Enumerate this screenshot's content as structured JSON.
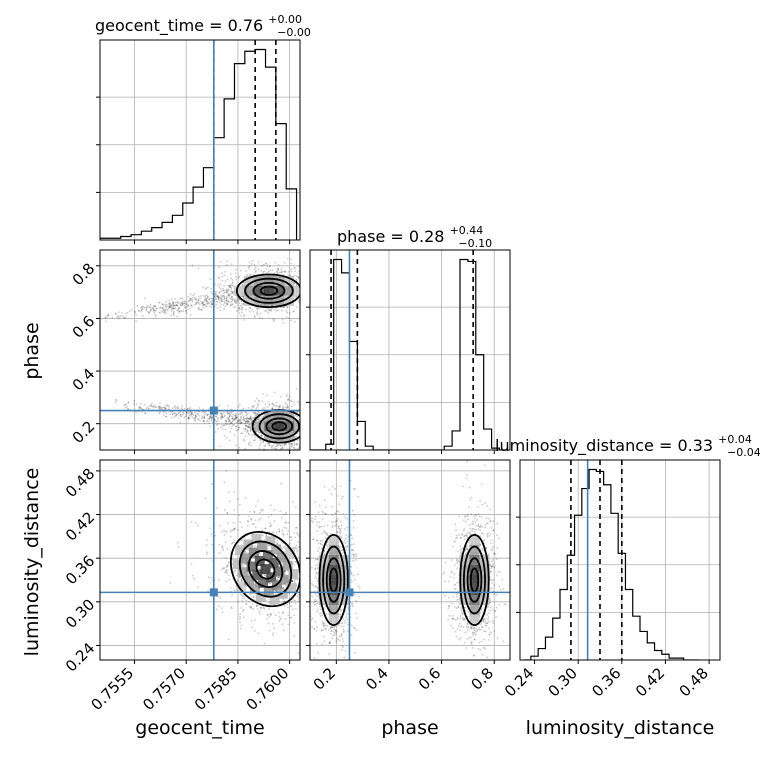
{
  "chart_data": {
    "type": "corner",
    "parameters": [
      "geocent_time",
      "phase",
      "luminosity_distance"
    ],
    "truths": {
      "geocent_time": 0.7578,
      "phase": 0.25,
      "luminosity_distance": 0.313
    },
    "titles": [
      {
        "param": "geocent_time",
        "text": "geocent_time = 0.76",
        "sup": "+0.00",
        "sub": "−0.00"
      },
      {
        "param": "phase",
        "text": "phase = 0.28",
        "sup": "+0.44",
        "sub": "−0.10"
      },
      {
        "param": "luminosity_distance",
        "text": "luminosity_distance = 0.33",
        "sup": "+0.04",
        "sub": "−0.04"
      }
    ],
    "axes": {
      "geocent_time": {
        "label": "geocent_time",
        "range": [
          0.7545,
          0.7603
        ],
        "ticks": [
          0.7555,
          0.757,
          0.7585,
          0.76
        ],
        "tick_labels": [
          "0.7555",
          "0.7570",
          "0.7585",
          "0.7600"
        ]
      },
      "phase": {
        "label": "phase",
        "range": [
          0.1,
          0.86
        ],
        "ticks": [
          0.2,
          0.4,
          0.6,
          0.8
        ],
        "tick_labels": [
          "0.2",
          "0.4",
          "0.6",
          "0.8"
        ]
      },
      "luminosity_distance": {
        "label": "luminosity_distance",
        "range": [
          0.22,
          0.495
        ],
        "ticks": [
          0.24,
          0.3,
          0.36,
          0.42,
          0.48
        ],
        "tick_labels": [
          "0.24",
          "0.30",
          "0.36",
          "0.42",
          "0.48"
        ]
      }
    },
    "histograms": {
      "geocent_time": {
        "bins": [
          0.7545,
          0.7548,
          0.7551,
          0.7554,
          0.7557,
          0.756,
          0.7563,
          0.7566,
          0.7569,
          0.7572,
          0.7575,
          0.7578,
          0.7581,
          0.7584,
          0.7587,
          0.759,
          0.7593,
          0.7596,
          0.7599,
          0.7602
        ],
        "counts": [
          1,
          1,
          2,
          3,
          5,
          7,
          10,
          14,
          21,
          30,
          41,
          58,
          80,
          100,
          107,
          108,
          98,
          66,
          29
        ],
        "quantiles": [
          0.7578,
          0.759,
          0.7596
        ]
      },
      "phase": {
        "bins": [
          0.1,
          0.13,
          0.16,
          0.19,
          0.22,
          0.25,
          0.28,
          0.31,
          0.34,
          0.37,
          0.4,
          0.43,
          0.46,
          0.49,
          0.52,
          0.55,
          0.58,
          0.61,
          0.64,
          0.67,
          0.7,
          0.73,
          0.76,
          0.79,
          0.82,
          0.85
        ],
        "counts": [
          0,
          0,
          3,
          100,
          93,
          57,
          15,
          2,
          0,
          0,
          0,
          0,
          0,
          0,
          0,
          0,
          0,
          2,
          10,
          100,
          99,
          50,
          11,
          1,
          0
        ],
        "quantiles": [
          0.18,
          0.28,
          0.72
        ]
      },
      "luminosity_distance": {
        "bins": [
          0.225,
          0.235,
          0.245,
          0.255,
          0.265,
          0.275,
          0.285,
          0.295,
          0.305,
          0.315,
          0.325,
          0.335,
          0.345,
          0.355,
          0.365,
          0.375,
          0.385,
          0.395,
          0.405,
          0.415,
          0.425,
          0.435,
          0.445,
          0.455,
          0.465
        ],
        "counts": [
          0,
          2,
          6,
          12,
          22,
          37,
          55,
          76,
          90,
          100,
          99,
          92,
          77,
          56,
          37,
          23,
          15,
          9,
          5,
          3,
          1,
          1,
          0,
          0
        ],
        "quantiles": [
          0.29,
          0.33,
          0.36
        ]
      }
    },
    "joint_modes": {
      "phase_vs_geocent_time": [
        {
          "center": [
            0.7594,
            0.705
          ],
          "spread": [
            0.0006,
            0.04
          ],
          "weight": 1.0,
          "tail": {
            "from": [
              0.7545,
              0.6
            ],
            "to": [
              0.7594,
              0.705
            ]
          }
        },
        {
          "center": [
            0.7597,
            0.19
          ],
          "spread": [
            0.0005,
            0.04
          ],
          "weight": 1.0,
          "tail": {
            "from": [
              0.7548,
              0.28
            ],
            "to": [
              0.7597,
              0.19
            ]
          }
        }
      ],
      "luminosity_distance_vs_geocent_time": [
        {
          "center": [
            0.7593,
            0.345
          ],
          "spread": [
            0.0006,
            0.035
          ],
          "weight": 1.0,
          "correlation": 0.6
        }
      ],
      "luminosity_distance_vs_phase": [
        {
          "center": [
            0.19,
            0.33
          ],
          "spread": [
            0.035,
            0.04
          ],
          "weight": 1.0
        },
        {
          "center": [
            0.725,
            0.33
          ],
          "spread": [
            0.035,
            0.04
          ],
          "weight": 1.0
        }
      ]
    }
  }
}
